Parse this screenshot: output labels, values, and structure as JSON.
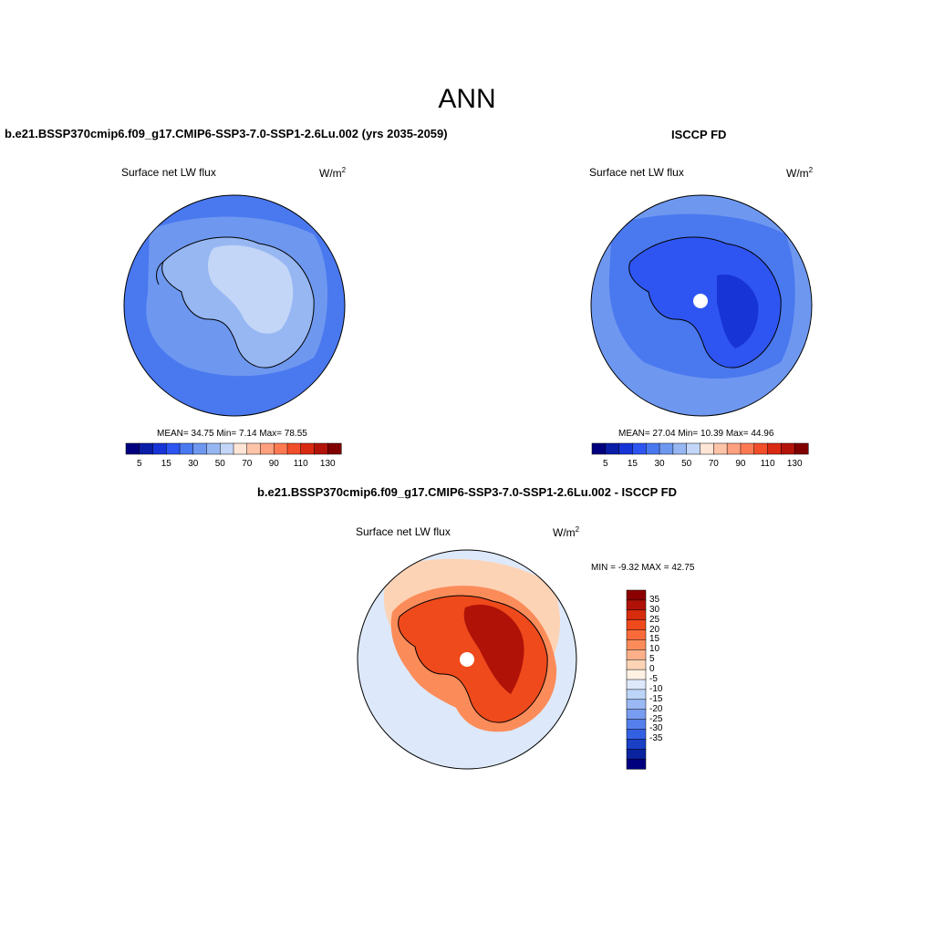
{
  "title": "ANN",
  "panels": [
    {
      "id": "model",
      "title": "b.e21.BSSP370cmip6.f09_g17.CMIP6-SSP3-7.0-SSP1-2.6Lu.002 (yrs 2035-2059)",
      "variable": "Surface net LW flux",
      "units_base": "W/m",
      "units_exp": "2",
      "stats": "MEAN=  34.75  Min=   7.14  Max=  78.55"
    },
    {
      "id": "obs",
      "title": "ISCCP FD",
      "variable": "Surface net LW flux",
      "units_base": "W/m",
      "units_exp": "2",
      "stats": "MEAN=  27.04  Min=  10.39  Max=  44.96"
    },
    {
      "id": "diff",
      "title": "b.e21.BSSP370cmip6.f09_g17.CMIP6-SSP3-7.0-SSP1-2.6Lu.002 - ISCCP FD",
      "variable": "Surface net LW flux",
      "units_base": "W/m",
      "units_exp": "2",
      "stats": "MIN =  -9.32 MAX =  42.75"
    }
  ],
  "abs_colorbar": {
    "colors": [
      "#00007f",
      "#0a1ea8",
      "#1734d6",
      "#2e55f2",
      "#4a78ef",
      "#6e98f0",
      "#97b7f3",
      "#c3d6f7",
      "#ffe5d6",
      "#ffc4a8",
      "#ffa07f",
      "#ff7a52",
      "#f24e2a",
      "#d92a12",
      "#b3140a",
      "#800000"
    ],
    "tick_labels": [
      "5",
      "15",
      "30",
      "50",
      "70",
      "90",
      "110",
      "130"
    ]
  },
  "diff_colorbar": {
    "colors": [
      "#8b0000",
      "#b01208",
      "#d72c0e",
      "#ef4a1c",
      "#f96a3a",
      "#fb8c5a",
      "#fcb08a",
      "#fdd3b6",
      "#fff1e4",
      "#dde9fb",
      "#bcd4f8",
      "#9ab8f4",
      "#789cf0",
      "#5580ec",
      "#3360e3",
      "#1a40c6",
      "#0a24a0",
      "#00007f"
    ],
    "tick_labels": [
      "35",
      "30",
      "25",
      "20",
      "15",
      "10",
      "5",
      "0",
      "-5",
      "-10",
      "-15",
      "-20",
      "-25",
      "-30",
      "-35"
    ]
  },
  "map_colors": {
    "ocean_model": "#4a78ef",
    "shelf_model": "#6e98f0",
    "ice_model_1": "#97b7f3",
    "ice_model_2": "#c3d6f7",
    "ocean_obs": "#6e98f0",
    "land_obs_1": "#2e55f2",
    "land_obs_2": "#1734d6",
    "diff_ocean": "#dde9fb",
    "diff_warm_1": "#fdd3b6",
    "diff_warm_2": "#fb8c5a",
    "diff_warm_3": "#ef4a1c",
    "diff_warm_4": "#b01208",
    "coast": "#000000"
  }
}
